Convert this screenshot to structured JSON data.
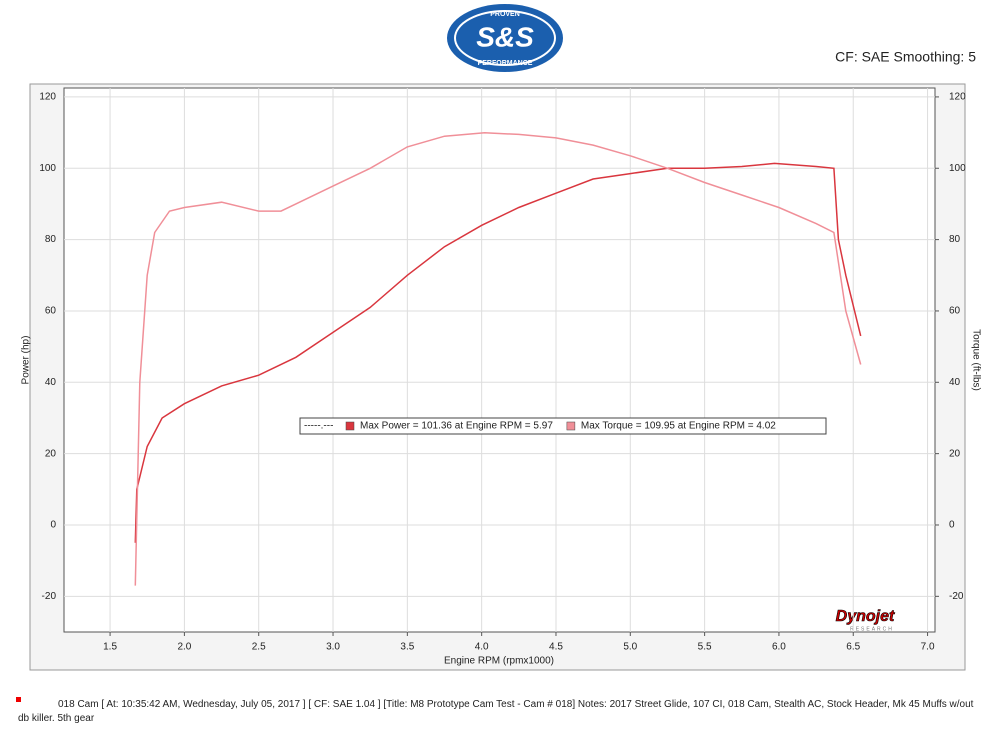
{
  "chart_data": {
    "type": "line",
    "header_note": "CF: SAE Smoothing: 5",
    "logo": {
      "top": "PROVEN",
      "main": "S&S",
      "bottom": "PERFORMANCE"
    },
    "brand": {
      "main": "Dynojet",
      "sub": "RESEARCH"
    },
    "x_label": "Engine RPM (rpmx1000)",
    "y_label": "Power (hp)",
    "y2_label": "Torque (ft-lbs)",
    "legend_prefix": "-----.---",
    "grid": true,
    "xlim": [
      1.19,
      7.05
    ],
    "xticks": [
      {
        "value": 1.5,
        "label": "1.5"
      },
      {
        "value": 2,
        "label": "2.0"
      },
      {
        "value": 2.5,
        "label": "2.5"
      },
      {
        "value": 3,
        "label": "3.0"
      },
      {
        "value": 3.5,
        "label": "3.5"
      },
      {
        "value": 4,
        "label": "4.0"
      },
      {
        "value": 4.5,
        "label": "4.5"
      },
      {
        "value": 5,
        "label": "5.0"
      },
      {
        "value": 5.5,
        "label": "5.5"
      },
      {
        "value": 6,
        "label": "6.0"
      },
      {
        "value": 6.5,
        "label": "6.5"
      },
      {
        "value": 7,
        "label": "7.0"
      }
    ],
    "ylim": [
      -30,
      122.5
    ],
    "yticks": [
      -20,
      0,
      20,
      40,
      60,
      80,
      100,
      120
    ],
    "y2lim": [
      -30,
      122.5
    ],
    "y2ticks": [
      -20,
      0,
      20,
      40,
      60,
      80,
      100,
      120
    ],
    "series": [
      {
        "name": "Max Power = 101.36 at Engine RPM = 5.97",
        "color": "#d9363e",
        "x": [
          1.67,
          1.68,
          1.75,
          1.85,
          2.0,
          2.25,
          2.5,
          2.75,
          3.0,
          3.25,
          3.5,
          3.75,
          4.0,
          4.25,
          4.5,
          4.75,
          5.0,
          5.25,
          5.5,
          5.75,
          5.97,
          6.25,
          6.37,
          6.4,
          6.45,
          6.55
        ],
        "values": [
          -5,
          10,
          22,
          30,
          34,
          39,
          42,
          47,
          54,
          61,
          70,
          78,
          84,
          89,
          93,
          97,
          98.5,
          100,
          100,
          100.5,
          101.36,
          100.5,
          100,
          80,
          70,
          53
        ]
      },
      {
        "name": "Max Torque = 109.95 at Engine RPM = 4.02",
        "color": "#f08f98",
        "axis": "y2",
        "x": [
          1.67,
          1.7,
          1.75,
          1.8,
          1.9,
          2.0,
          2.25,
          2.5,
          2.65,
          2.75,
          3.0,
          3.25,
          3.5,
          3.75,
          4.02,
          4.25,
          4.5,
          4.75,
          5.0,
          5.25,
          5.5,
          5.75,
          6.0,
          6.25,
          6.37,
          6.45,
          6.55
        ],
        "values": [
          -17,
          40,
          70,
          82,
          88,
          89,
          90.5,
          88,
          88,
          90,
          95,
          100,
          106,
          109,
          109.95,
          109.5,
          108.5,
          106.5,
          103.5,
          100,
          96,
          92.5,
          89,
          84.5,
          82,
          60,
          45
        ]
      }
    ],
    "footer_note": "018 Cam [ At: 10:35:42 AM, Wednesday, July 05, 2017 ] [ CF: SAE 1.04 ] [Title: M8 Prototype Cam Test - Cam # 018]  Notes: 2017 Street Glide, 107 CI, 018 Cam, Stealth AC, Stock Header, Mk 45 Muffs w/out db killer. 5th gear"
  }
}
